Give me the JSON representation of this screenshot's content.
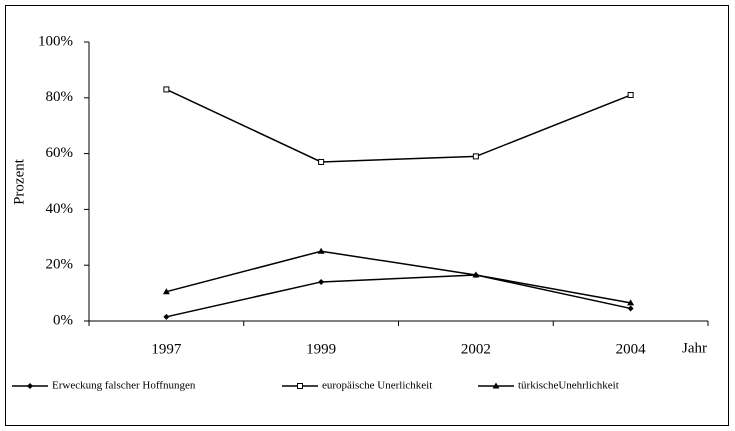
{
  "chart_data": {
    "type": "line",
    "categories": [
      "1997",
      "1999",
      "2002",
      "2004"
    ],
    "x_label": "Jahr",
    "y_label": "Prozent",
    "ylim": [
      0,
      100
    ],
    "yticks": [
      {
        "value": 0,
        "label": "0%"
      },
      {
        "value": 20,
        "label": "20%"
      },
      {
        "value": 40,
        "label": "40%"
      },
      {
        "value": 60,
        "label": "60%"
      },
      {
        "value": 80,
        "label": "80%"
      },
      {
        "value": 100,
        "label": "100%"
      }
    ],
    "series": [
      {
        "name": "Erweckung falscher Hoffnungen",
        "color": "#000000",
        "marker": "diamond",
        "values": [
          1.5,
          14,
          16.5,
          4.5
        ]
      },
      {
        "name": "europäische Unerlichkeit",
        "color": "#000000",
        "marker": "square",
        "values": [
          83,
          57,
          59,
          81
        ]
      },
      {
        "name": "türkischeUnehrlichkeit",
        "color": "#000000",
        "marker": "triangle",
        "values": [
          10.5,
          25,
          16.5,
          6.5
        ]
      }
    ],
    "legend": "bottom"
  }
}
